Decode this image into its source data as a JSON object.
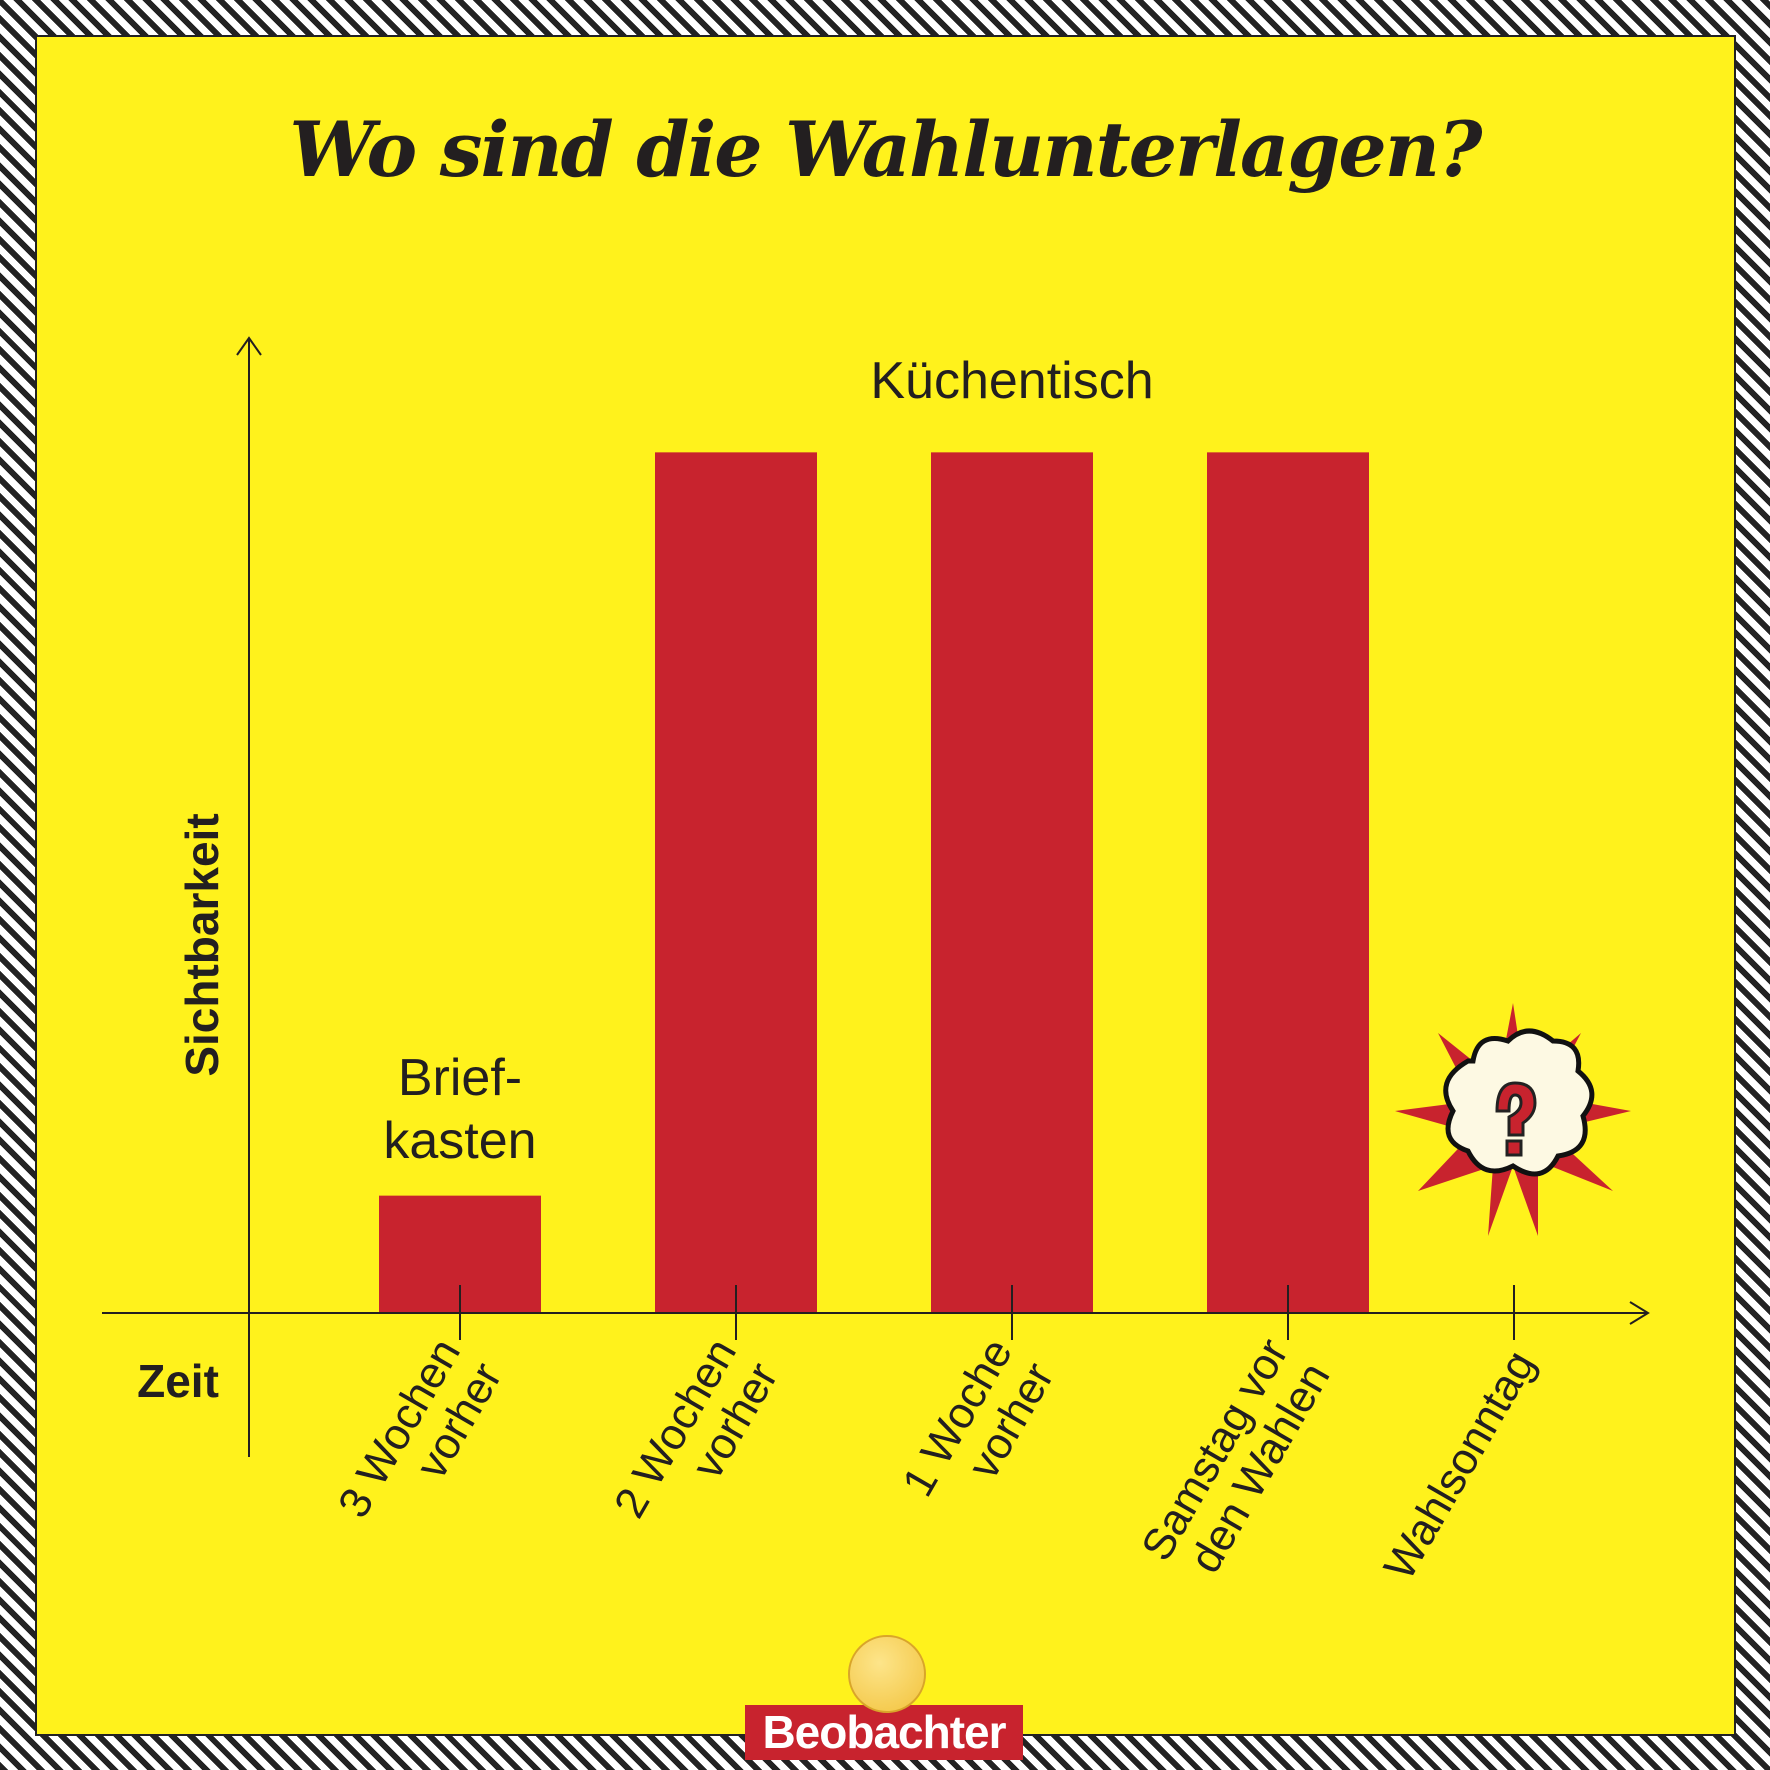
{
  "title": "Wo sind die Wahlunterlagen?",
  "colors": {
    "background": "#fff21c",
    "bar": "#c8232e",
    "text": "#231f20"
  },
  "logo": {
    "text": "Beobachter",
    "emoji": "winking-face"
  },
  "chart_data": {
    "type": "bar",
    "title": "Wo sind die Wahlunterlagen?",
    "xlabel": "Zeit",
    "ylabel": "Sichtbarkeit",
    "categories": [
      [
        "3 Wochen",
        "vorher"
      ],
      [
        "2 Wochen",
        "vorher"
      ],
      [
        "1 Woche",
        "vorher"
      ],
      [
        "Samstag vor",
        "den Wahlen"
      ],
      [
        "Wahlsonntag"
      ]
    ],
    "values": [
      12,
      88,
      88,
      88,
      null
    ],
    "ylim": [
      0,
      100
    ],
    "grid": false,
    "annotations": [
      {
        "text": [
          "Brief-",
          "kasten"
        ],
        "category": 0
      },
      {
        "text": [
          "Küchentisch"
        ],
        "category": [
          1,
          3
        ]
      },
      {
        "icon": "question-mark-burst-icon",
        "category": 4
      }
    ]
  }
}
